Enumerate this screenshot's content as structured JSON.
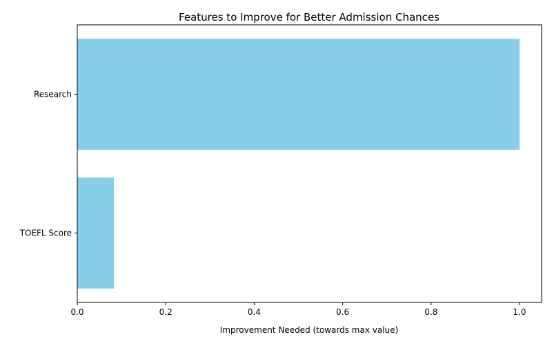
{
  "chart_data": {
    "type": "bar",
    "orientation": "horizontal",
    "title": "Features to Improve for Better Admission Chances",
    "xlabel": "Improvement Needed (towards max value)",
    "ylabel": "",
    "categories": [
      "Research",
      "TOEFL Score"
    ],
    "values": [
      1.0,
      0.083
    ],
    "xlim": [
      0,
      1.05
    ],
    "xticks": [
      0.0,
      0.2,
      0.4,
      0.6,
      0.8,
      1.0
    ],
    "xtick_labels": [
      "0.0",
      "0.2",
      "0.4",
      "0.6",
      "0.8",
      "1.0"
    ],
    "grid": false,
    "bar_color": "#87CEEB"
  }
}
